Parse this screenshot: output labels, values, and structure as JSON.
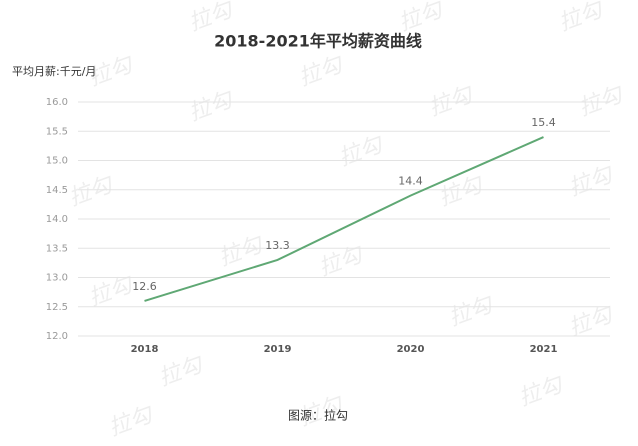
{
  "chart_data": {
    "type": "line",
    "title": "2018-2021年平均薪资曲线",
    "y_label": "平均月薪:千元/月",
    "source": "图源：拉勾",
    "watermark": "拉勾",
    "categories": [
      "2018",
      "2019",
      "2020",
      "2021"
    ],
    "values": [
      12.6,
      13.3,
      14.4,
      15.4
    ],
    "color": "#5fa874",
    "ylim": [
      12,
      16
    ],
    "yticks": [
      {
        "value": 12,
        "label": "12.0"
      },
      {
        "value": 12.5,
        "label": "12.5"
      },
      {
        "value": 13,
        "label": "13.0"
      },
      {
        "value": 13.5,
        "label": "13.5"
      },
      {
        "value": 14,
        "label": "14.0"
      },
      {
        "value": 14.5,
        "label": "14.5"
      },
      {
        "value": 15,
        "label": "15.0"
      },
      {
        "value": 15.5,
        "label": "15.5"
      },
      {
        "value": 16,
        "label": "16.0"
      }
    ],
    "grid": true
  }
}
